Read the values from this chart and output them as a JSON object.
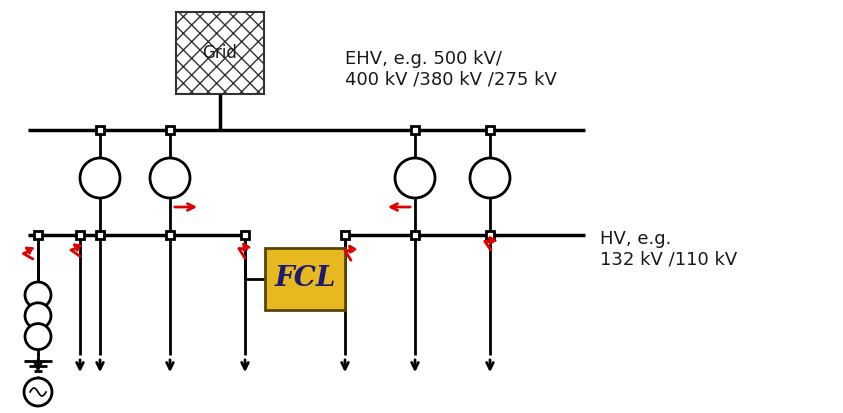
{
  "bg_color": "#ffffff",
  "line_color": "#000000",
  "red_color": "#dd0000",
  "fcl_fill": "#e8b820",
  "fcl_edge": "#5a4500",
  "grid_fill": "#ffffff",
  "grid_edge": "#333333",
  "text_color": "#1a1a1a",
  "ehv_text": "EHV, e.g. 500 kV/\n400 kV /380 kV /275 kV",
  "hv_text": "HV, e.g.\n132 kV /110 kV",
  "grid_text": "Grid",
  "fcl_text": "FCL",
  "fig_width": 8.43,
  "fig_height": 4.13,
  "dpi": 100,
  "ehv_fontsize": 13,
  "hv_fontsize": 13,
  "fcl_fontsize": 20,
  "grid_fontsize": 12,
  "lw_main": 2.0,
  "lw_bus": 2.5
}
